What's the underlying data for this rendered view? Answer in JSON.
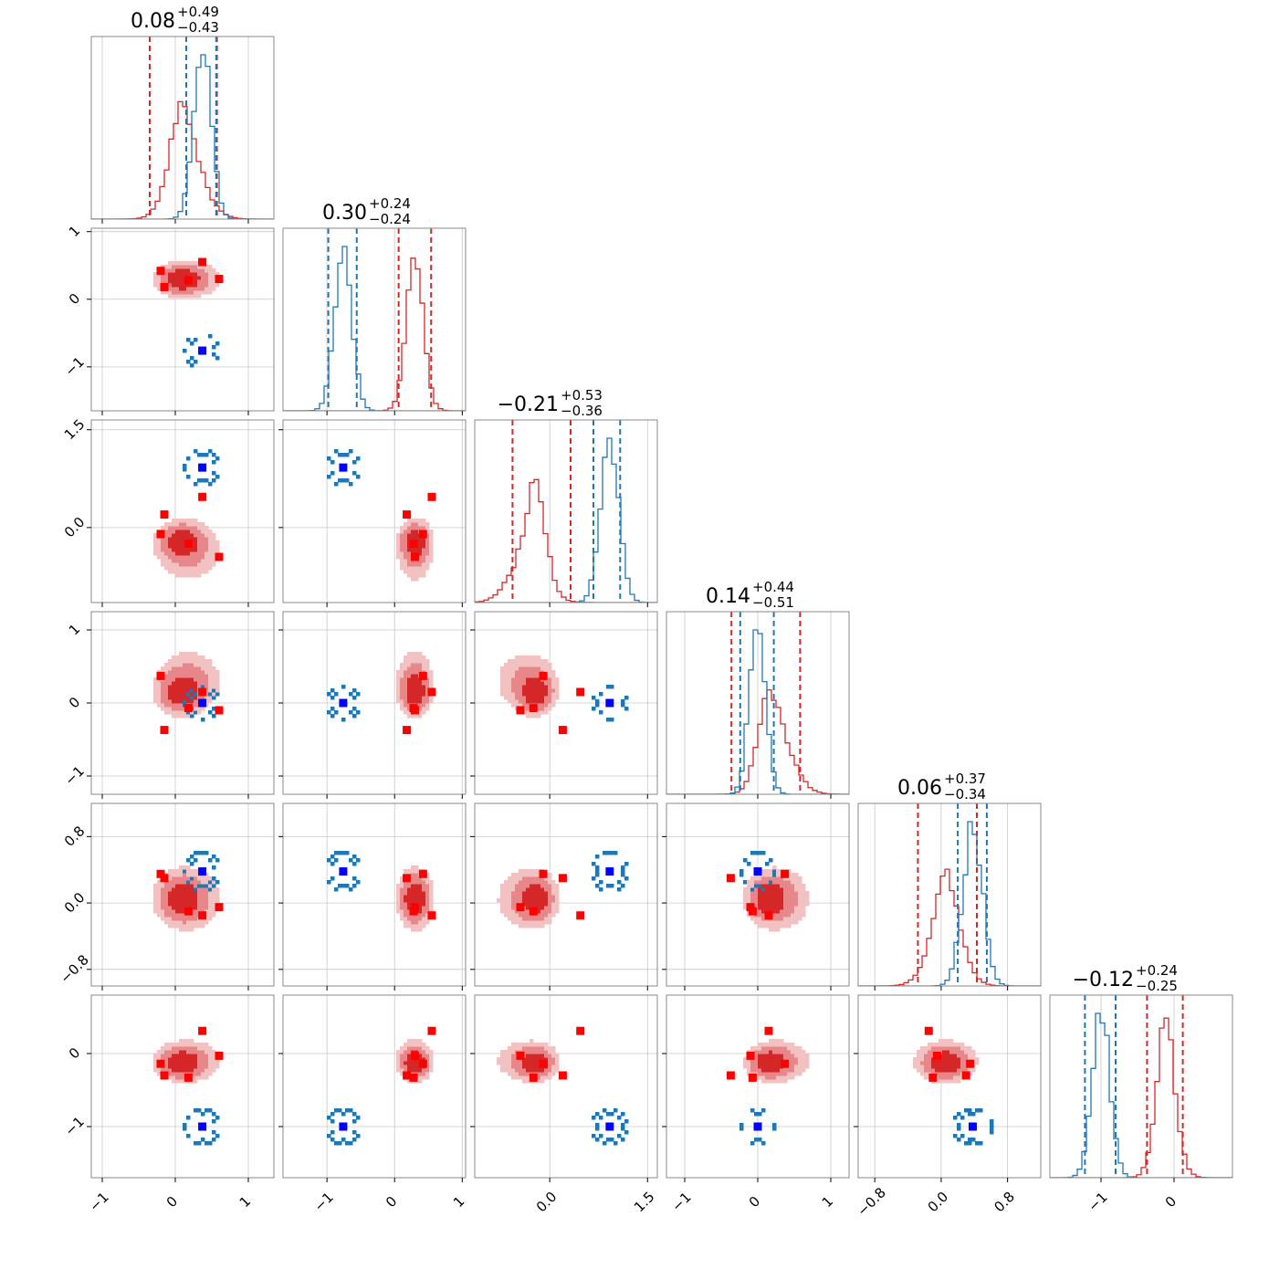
{
  "chart_data": {
    "type": "corner",
    "grid": true,
    "colors": {
      "red": "#d62728",
      "blue": "#1f77b4",
      "red_point": "#ff0000",
      "blue_point": "#0000ff",
      "grid": "#c8c8c8",
      "frame": "#888888"
    },
    "titles": [
      {
        "main": "0.08",
        "plus": "+0.49",
        "minus": "−0.43"
      },
      {
        "main": "0.30",
        "plus": "+0.24",
        "minus": "−0.24"
      },
      {
        "main": "−0.21",
        "plus": "+0.53",
        "minus": "−0.36"
      },
      {
        "main": "0.14",
        "plus": "+0.44",
        "minus": "−0.51"
      },
      {
        "main": "0.06",
        "plus": "+0.37",
        "minus": "−0.34"
      },
      {
        "main": "−0.12",
        "plus": "+0.24",
        "minus": "−0.25"
      }
    ],
    "params": [
      {
        "range": [
          -1.15,
          1.35
        ],
        "ticks": [
          -1,
          0,
          1
        ],
        "ticklabels": [
          "−1",
          "0",
          "1"
        ]
      },
      {
        "range": [
          -1.65,
          1.05
        ],
        "ticks": [
          -1,
          0,
          1
        ],
        "ticklabels": [
          "−1",
          "0",
          "1"
        ]
      },
      {
        "range": [
          -1.15,
          1.65
        ],
        "ticks": [
          0,
          1.5
        ],
        "ticklabels": [
          "0.0",
          "1.5"
        ]
      },
      {
        "range": [
          -1.25,
          1.25
        ],
        "ticks": [
          -1,
          0,
          1
        ],
        "ticklabels": [
          "−1",
          "0",
          "1"
        ]
      },
      {
        "range": [
          -1.0,
          1.2
        ],
        "ticks": [
          -0.8,
          0,
          0.8
        ],
        "ticklabels": [
          "−0.8",
          "0.0",
          "0.8"
        ]
      },
      {
        "range": [
          -1.7,
          0.8
        ],
        "ticks": [
          -1,
          0
        ],
        "ticklabels": [
          "−1",
          "0"
        ]
      }
    ],
    "quantiles": {
      "red": [
        [
          -0.35,
          0.57
        ],
        [
          0.06,
          0.54
        ],
        [
          -0.57,
          0.32
        ],
        [
          -0.36,
          0.58
        ],
        [
          -0.28,
          0.43
        ],
        [
          -0.37,
          0.12
        ]
      ],
      "blue": [
        [
          0.15,
          0.56
        ],
        [
          -0.98,
          -0.56
        ],
        [
          0.67,
          1.08
        ],
        [
          -0.24,
          0.22
        ],
        [
          0.2,
          0.55
        ],
        [
          -1.22,
          -0.8
        ]
      ]
    },
    "blobs": {
      "red": [
        {
          "mean": [
            0.08,
            0.3,
            -0.21,
            0.14,
            0.06,
            -0.12
          ],
          "sd": [
            0.16,
            0.11,
            0.14,
            0.14,
            0.14,
            0.11
          ]
        },
        {
          "mean": [
            0.18,
            0.3,
            -0.35,
            0.3,
            0.05,
            -0.1
          ],
          "sd": [
            0.24,
            0.14,
            0.26,
            0.22,
            0.2,
            0.15
          ]
        }
      ],
      "blue": {
        "mean": [
          0.37,
          -0.76,
          0.92,
          0.0,
          0.38,
          -1.0
        ],
        "sd": [
          0.12,
          0.13,
          0.14,
          0.11,
          0.12,
          0.12
        ]
      }
    },
    "markers": {
      "red": [
        [
          0.37,
          0.55,
          0.47,
          0.15,
          -0.15,
          0.31
        ],
        [
          -0.2,
          0.42,
          -0.1,
          0.37,
          0.35,
          -0.14
        ],
        [
          -0.15,
          0.18,
          0.2,
          -0.37,
          0.3,
          -0.3
        ],
        [
          0.6,
          0.3,
          -0.45,
          -0.1,
          -0.05,
          -0.03
        ],
        [
          0.18,
          0.28,
          -0.25,
          -0.07,
          -0.1,
          -0.33
        ]
      ],
      "blue": [
        0.37,
        -0.76,
        0.92,
        0.0,
        0.38,
        -1.0
      ]
    }
  }
}
